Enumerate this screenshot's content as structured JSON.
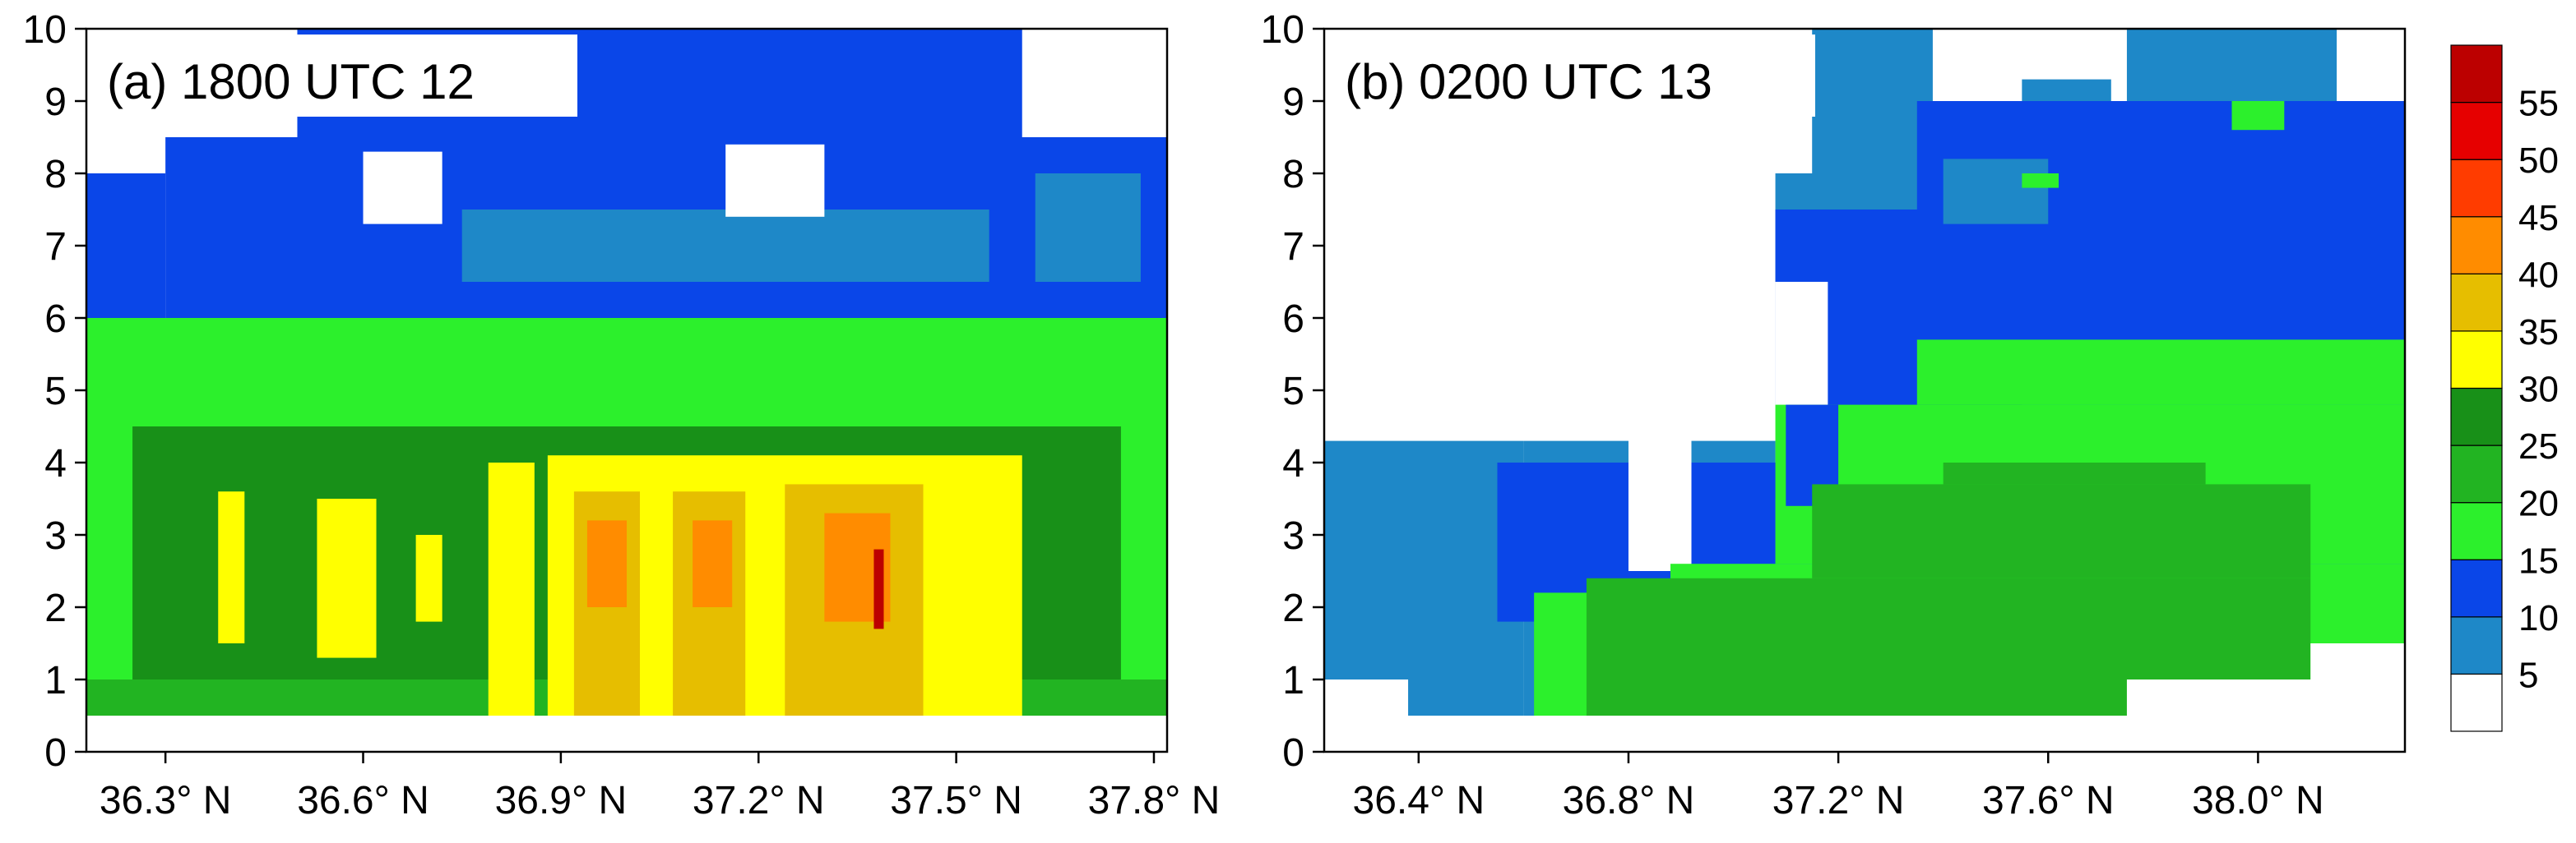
{
  "chart_data": [
    {
      "type": "heatmap",
      "panel_label": "(a) 1800 UTC 12",
      "x_ticks": [
        "36.3° N",
        "36.6° N",
        "36.9° N",
        "37.2° N",
        "37.5° N",
        "37.8° N"
      ],
      "x_tick_values": [
        36.3,
        36.6,
        36.9,
        37.2,
        37.5,
        37.8
      ],
      "xlim": [
        36.18,
        37.82
      ],
      "y_ticks": [
        "0",
        "1",
        "2",
        "3",
        "4",
        "5",
        "6",
        "7",
        "8",
        "9",
        "10"
      ],
      "ylim": [
        0,
        10
      ],
      "cells": [
        {
          "x0": 36.18,
          "x1": 37.82,
          "y0": 0.5,
          "y1": 4.5,
          "level": 20
        },
        {
          "x0": 36.18,
          "x1": 37.82,
          "y0": 4.5,
          "y1": 6.0,
          "level": 15
        },
        {
          "x0": 36.18,
          "x1": 36.3,
          "y0": 6.0,
          "y1": 8.0,
          "level": 10
        },
        {
          "x0": 36.3,
          "x1": 37.82,
          "y0": 6.0,
          "y1": 8.5,
          "level": 10
        },
        {
          "x0": 36.5,
          "x1": 37.6,
          "y0": 8.5,
          "y1": 10.0,
          "level": 10
        },
        {
          "x0": 36.75,
          "x1": 37.55,
          "y0": 6.5,
          "y1": 7.5,
          "level": 5
        },
        {
          "x0": 37.62,
          "x1": 37.78,
          "y0": 6.5,
          "y1": 8.0,
          "level": 5
        },
        {
          "x0": 36.28,
          "x1": 36.5,
          "y0": 8.5,
          "y1": 10.0,
          "level": 0
        },
        {
          "x0": 36.18,
          "x1": 36.28,
          "y0": 8.0,
          "y1": 10.0,
          "level": 0
        },
        {
          "x0": 37.65,
          "x1": 37.82,
          "y0": 8.8,
          "y1": 10.0,
          "level": 0
        },
        {
          "x0": 36.6,
          "x1": 36.72,
          "y0": 7.3,
          "y1": 8.3,
          "level": 0
        },
        {
          "x0": 37.15,
          "x1": 37.3,
          "y0": 7.4,
          "y1": 8.4,
          "level": 0
        },
        {
          "x0": 36.18,
          "x1": 37.82,
          "y0": 1.0,
          "y1": 4.5,
          "level": 25
        },
        {
          "x0": 36.18,
          "x1": 36.25,
          "y0": 1.0,
          "y1": 4.5,
          "level": 15
        },
        {
          "x0": 37.75,
          "x1": 37.82,
          "y0": 1.0,
          "y1": 4.5,
          "level": 15
        },
        {
          "x0": 36.38,
          "x1": 36.42,
          "y0": 1.5,
          "y1": 3.6,
          "level": 30
        },
        {
          "x0": 36.53,
          "x1": 36.62,
          "y0": 1.3,
          "y1": 3.5,
          "level": 30
        },
        {
          "x0": 36.68,
          "x1": 36.72,
          "y0": 1.8,
          "y1": 3.0,
          "level": 30
        },
        {
          "x0": 36.79,
          "x1": 36.86,
          "y0": 0.5,
          "y1": 4.0,
          "level": 30
        },
        {
          "x0": 36.88,
          "x1": 37.6,
          "y0": 0.5,
          "y1": 4.1,
          "level": 30
        },
        {
          "x0": 36.92,
          "x1": 37.02,
          "y0": 0.5,
          "y1": 3.6,
          "level": 35
        },
        {
          "x0": 37.07,
          "x1": 37.18,
          "y0": 0.5,
          "y1": 3.6,
          "level": 35
        },
        {
          "x0": 37.24,
          "x1": 37.45,
          "y0": 0.5,
          "y1": 3.7,
          "level": 35
        },
        {
          "x0": 36.94,
          "x1": 37.0,
          "y0": 2.0,
          "y1": 3.2,
          "level": 40
        },
        {
          "x0": 37.1,
          "x1": 37.16,
          "y0": 2.0,
          "y1": 3.2,
          "level": 40
        },
        {
          "x0": 37.3,
          "x1": 37.4,
          "y0": 1.8,
          "y1": 3.3,
          "level": 40
        },
        {
          "x0": 37.375,
          "x1": 37.39,
          "y0": 1.7,
          "y1": 2.8,
          "level": 55
        }
      ]
    },
    {
      "type": "heatmap",
      "panel_label": "(b) 0200 UTC 13",
      "x_ticks": [
        "36.4° N",
        "36.8° N",
        "37.2° N",
        "37.6° N",
        "38.0° N"
      ],
      "x_tick_values": [
        36.4,
        36.8,
        37.2,
        37.6,
        38.0
      ],
      "xlim": [
        36.22,
        38.28
      ],
      "y_ticks": [
        "0",
        "1",
        "2",
        "3",
        "4",
        "5",
        "6",
        "7",
        "8",
        "9",
        "10"
      ],
      "ylim": [
        0,
        10
      ],
      "cells": [
        {
          "x0": 36.22,
          "x1": 36.6,
          "y0": 1.0,
          "y1": 4.3,
          "level": 5
        },
        {
          "x0": 36.38,
          "x1": 36.6,
          "y0": 0.5,
          "y1": 1.0,
          "level": 5
        },
        {
          "x0": 36.6,
          "x1": 37.08,
          "y0": 0.5,
          "y1": 4.3,
          "level": 5
        },
        {
          "x0": 37.08,
          "x1": 38.28,
          "y0": 0.5,
          "y1": 8.0,
          "level": 5
        },
        {
          "x0": 37.15,
          "x1": 37.38,
          "y0": 8.0,
          "y1": 10.0,
          "level": 5
        },
        {
          "x0": 37.55,
          "x1": 37.72,
          "y0": 8.0,
          "y1": 9.3,
          "level": 5
        },
        {
          "x0": 37.75,
          "x1": 38.15,
          "y0": 8.0,
          "y1": 10.0,
          "level": 5
        },
        {
          "x0": 36.55,
          "x1": 37.08,
          "y0": 1.8,
          "y1": 4.0,
          "level": 10
        },
        {
          "x0": 37.08,
          "x1": 37.55,
          "y0": 3.5,
          "y1": 7.5,
          "level": 10
        },
        {
          "x0": 37.35,
          "x1": 38.28,
          "y0": 5.0,
          "y1": 9.0,
          "level": 10
        },
        {
          "x0": 37.4,
          "x1": 37.6,
          "y0": 7.3,
          "y1": 8.2,
          "level": 5
        },
        {
          "x0": 36.8,
          "x1": 36.92,
          "y0": 2.5,
          "y1": 4.5,
          "level": 0
        },
        {
          "x0": 37.08,
          "x1": 37.18,
          "y0": 4.0,
          "y1": 6.5,
          "level": 0
        },
        {
          "x0": 36.62,
          "x1": 37.08,
          "y0": 0.5,
          "y1": 2.2,
          "level": 15
        },
        {
          "x0": 36.88,
          "x1": 38.28,
          "y0": 0.5,
          "y1": 2.6,
          "level": 15
        },
        {
          "x0": 37.08,
          "x1": 38.28,
          "y0": 2.6,
          "y1": 4.8,
          "level": 15
        },
        {
          "x0": 37.35,
          "x1": 38.28,
          "y0": 4.8,
          "y1": 5.7,
          "level": 15
        },
        {
          "x0": 37.1,
          "x1": 37.2,
          "y0": 3.4,
          "y1": 4.8,
          "level": 10
        },
        {
          "x0": 36.72,
          "x1": 38.1,
          "y0": 0.5,
          "y1": 2.4,
          "level": 20
        },
        {
          "x0": 37.15,
          "x1": 38.1,
          "y0": 2.4,
          "y1": 3.7,
          "level": 20
        },
        {
          "x0": 37.4,
          "x1": 37.9,
          "y0": 3.7,
          "y1": 4.0,
          "level": 20
        },
        {
          "x0": 37.75,
          "x1": 38.28,
          "y0": 0.0,
          "y1": 1.0,
          "level": 0
        },
        {
          "x0": 38.1,
          "x1": 38.28,
          "y0": 1.0,
          "y1": 1.5,
          "level": 0
        },
        {
          "x0": 37.55,
          "x1": 37.75,
          "y0": 0.0,
          "y1": 0.5,
          "level": 0
        },
        {
          "x0": 37.95,
          "x1": 38.05,
          "y0": 8.6,
          "y1": 9.0,
          "level": 15
        },
        {
          "x0": 37.55,
          "x1": 37.62,
          "y0": 7.8,
          "y1": 8.0,
          "level": 15
        }
      ]
    }
  ],
  "colorbar": {
    "labels": [
      "5",
      "10",
      "15",
      "20",
      "25",
      "30",
      "35",
      "40",
      "45",
      "50",
      "55"
    ],
    "levels": [
      {
        "level": 0,
        "color": "#ffffff"
      },
      {
        "level": 5,
        "color": "#1e88c8"
      },
      {
        "level": 10,
        "color": "#0a46e8"
      },
      {
        "level": 15,
        "color": "#2cf02c"
      },
      {
        "level": 20,
        "color": "#22b422"
      },
      {
        "level": 25,
        "color": "#189018"
      },
      {
        "level": 30,
        "color": "#ffff00"
      },
      {
        "level": 35,
        "color": "#e6be00"
      },
      {
        "level": 40,
        "color": "#ff8c00"
      },
      {
        "level": 45,
        "color": "#ff3c00"
      },
      {
        "level": 50,
        "color": "#e60000"
      },
      {
        "level": 55,
        "color": "#bc0000"
      }
    ]
  }
}
